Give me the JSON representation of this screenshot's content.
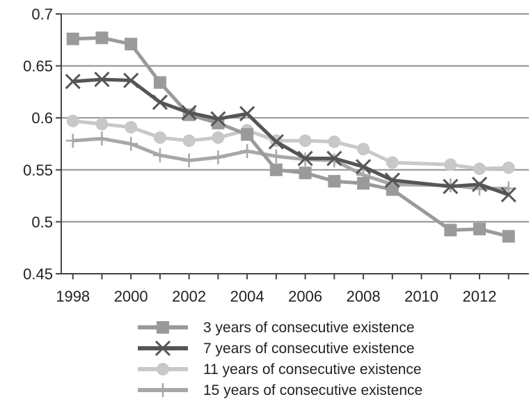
{
  "chart_data": {
    "type": "line",
    "title": "",
    "xlabel": "",
    "ylabel": "",
    "x": [
      1998,
      1999,
      2000,
      2001,
      2002,
      2003,
      2004,
      2005,
      2006,
      2007,
      2008,
      2009,
      2010,
      2011,
      2012,
      2013
    ],
    "xlim": [
      1997.6,
      2013.7
    ],
    "ylim": [
      0.45,
      0.7
    ],
    "x_ticks": [
      "1998",
      "2000",
      "2002",
      "2004",
      "2006",
      "2008",
      "2010",
      "2012"
    ],
    "x_tick_values": [
      1998,
      2000,
      2002,
      2004,
      2006,
      2008,
      2010,
      2012
    ],
    "y_ticks": [
      "0.45",
      "0.5",
      "0.55",
      "0.6",
      "0.65",
      "0.7"
    ],
    "y_tick_values": [
      0.45,
      0.5,
      0.55,
      0.6,
      0.65,
      0.7
    ],
    "grid": "horizontal",
    "legend_position": "bottom",
    "series": [
      {
        "name": "3 years of consecutive existence",
        "marker": "square",
        "color": "#9a9a9a",
        "x": [
          1998,
          1999,
          2000,
          2001,
          2002,
          2003,
          2004,
          2005,
          2006,
          2007,
          2008,
          2009,
          2011,
          2012,
          2013
        ],
        "values": [
          0.676,
          0.677,
          0.671,
          0.634,
          0.603,
          0.595,
          0.584,
          0.55,
          0.547,
          0.539,
          0.537,
          0.531,
          0.492,
          0.493,
          0.486
        ]
      },
      {
        "name": "7 years of consecutive existence",
        "marker": "x",
        "color": "#555555",
        "x": [
          1998,
          1999,
          2000,
          2001,
          2002,
          2003,
          2004,
          2005,
          2006,
          2007,
          2008,
          2009,
          2011,
          2012,
          2013
        ],
        "values": [
          0.635,
          0.637,
          0.636,
          0.615,
          0.605,
          0.599,
          0.604,
          0.577,
          0.561,
          0.561,
          0.553,
          0.54,
          0.534,
          0.536,
          0.526
        ]
      },
      {
        "name": "11 years of consecutive existence",
        "marker": "circle",
        "color": "#c8c8c8",
        "x": [
          1998,
          1999,
          2000,
          2001,
          2002,
          2003,
          2004,
          2005,
          2006,
          2007,
          2008,
          2009,
          2011,
          2012,
          2013
        ],
        "values": [
          0.597,
          0.594,
          0.591,
          0.581,
          0.578,
          0.581,
          0.588,
          0.578,
          0.578,
          0.577,
          0.57,
          0.557,
          0.555,
          0.551,
          0.552
        ]
      },
      {
        "name": "15 years of consecutive existence",
        "marker": "plus",
        "color": "#a8a8a8",
        "x": [
          1998,
          1999,
          2000,
          2001,
          2002,
          2003,
          2004,
          2005,
          2006,
          2007,
          2008,
          2009,
          2011,
          2012,
          2013
        ],
        "values": [
          0.578,
          0.58,
          0.575,
          0.564,
          0.559,
          0.562,
          0.568,
          0.563,
          0.56,
          0.559,
          0.545,
          0.536,
          0.535,
          0.532,
          0.532
        ]
      }
    ]
  },
  "colors": {
    "grid": "#999999",
    "axis": "#444444",
    "text": "#222222"
  }
}
